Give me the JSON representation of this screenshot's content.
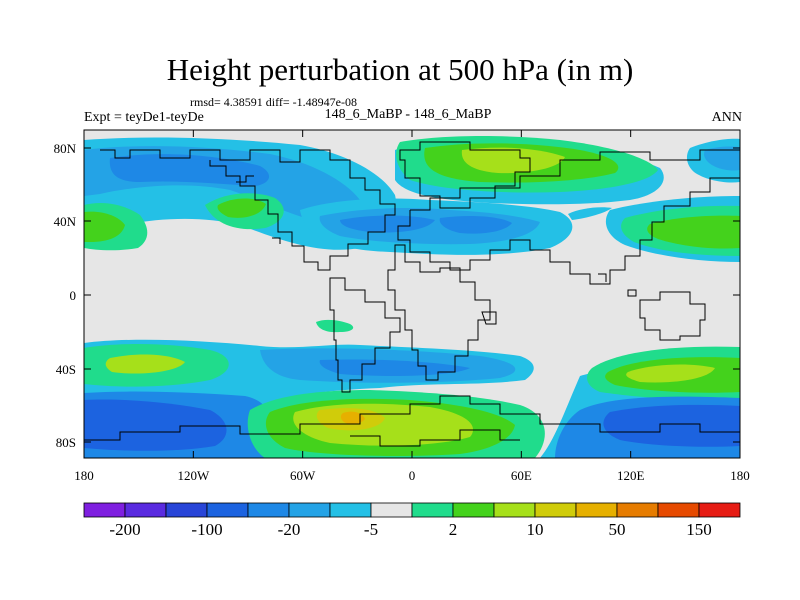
{
  "figure": {
    "title": "Height perturbation at 500 hPa (in m)",
    "stats": "rmsd= 4.38591 diff= -1.48947e-08",
    "left_label": "Expt = teyDe1-teyDe",
    "center_label": "148_6_MaBP - 148_6_MaBP",
    "right_label": "ANN"
  },
  "axes": {
    "x_ticks": [
      "180",
      "120W",
      "60W",
      "0",
      "60E",
      "120E",
      "180"
    ],
    "y_ticks": [
      "80N",
      "40N",
      "0",
      "40S",
      "80S"
    ]
  },
  "colorbar": {
    "colors": [
      "#7f1fe0",
      "#5a2be0",
      "#2845d8",
      "#1c63e0",
      "#1e88e6",
      "#24a3e6",
      "#24c0e6",
      "#e6e6e6",
      "#20dc8c",
      "#44d21c",
      "#a6e01a",
      "#d0cc0a",
      "#e6b000",
      "#e67c00",
      "#e64a00",
      "#e61c14"
    ],
    "labels": [
      "-200",
      "-100",
      "-20",
      "-5",
      "2",
      "10",
      "50",
      "150"
    ]
  },
  "colors": {
    "ocean_gray": "#e6e6e6",
    "coast": "#000000"
  }
}
